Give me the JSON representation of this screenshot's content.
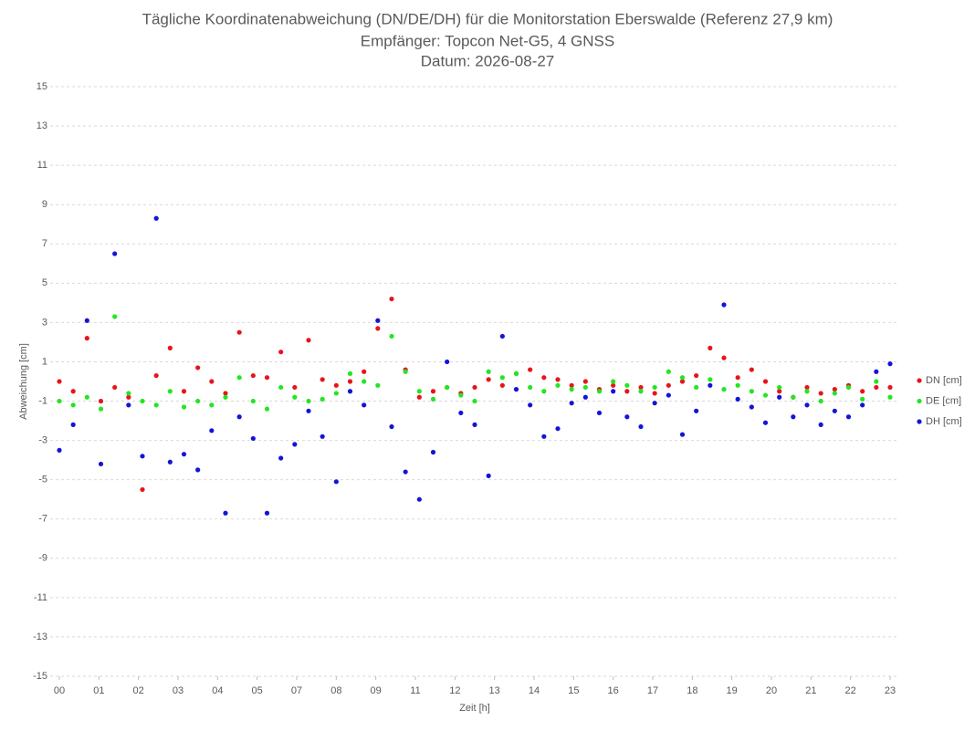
{
  "chart_data": {
    "type": "scatter",
    "title": [
      "Tägliche Koordinatenabweichung (DN/DE/DH) für die Monitorstation Eberswalde (Referenz 27,9 km)",
      "Empfänger: Topcon Net-G5, 4 GNSS",
      "Datum: 2026-08-27"
    ],
    "x_label": "Zeit [h]",
    "y_label": "Abweichung [cm]",
    "xlim": [
      0,
      21
    ],
    "xticks": [
      {
        "value": 0,
        "label": "00"
      },
      {
        "value": 1,
        "label": "01"
      },
      {
        "value": 2,
        "label": "02"
      },
      {
        "value": 3,
        "label": "03"
      },
      {
        "value": 4,
        "label": "04"
      },
      {
        "value": 5,
        "label": "05"
      },
      {
        "value": 6,
        "label": "07"
      },
      {
        "value": 7,
        "label": "08"
      },
      {
        "value": 8,
        "label": "09"
      },
      {
        "value": 9,
        "label": "11"
      },
      {
        "value": 10,
        "label": "12"
      },
      {
        "value": 11,
        "label": "13"
      },
      {
        "value": 12,
        "label": "14"
      },
      {
        "value": 13,
        "label": "15"
      },
      {
        "value": 14,
        "label": "16"
      },
      {
        "value": 15,
        "label": "17"
      },
      {
        "value": 16,
        "label": "18"
      },
      {
        "value": 17,
        "label": "19"
      },
      {
        "value": 18,
        "label": "20"
      },
      {
        "value": 19,
        "label": "21"
      },
      {
        "value": 20,
        "label": "22"
      },
      {
        "value": 21,
        "label": "23"
      }
    ],
    "ylim": [
      -15,
      15
    ],
    "yticks": [
      -15,
      -13,
      -11,
      -9,
      -7,
      -5,
      -3,
      -1,
      1,
      3,
      5,
      7,
      9,
      11,
      13,
      15
    ],
    "grid": true,
    "legend": "right",
    "x": [
      0,
      0.35,
      0.7,
      1.05,
      1.4,
      1.75,
      2.1,
      2.45,
      2.8,
      3.15,
      3.5,
      3.85,
      4.2,
      4.55,
      4.9,
      5.25,
      5.6,
      5.95,
      6.3,
      6.65,
      7,
      7.35,
      7.7,
      8.05,
      8.4,
      8.75,
      9.1,
      9.45,
      9.8,
      10.15,
      10.5,
      10.85,
      11.2,
      11.55,
      11.9,
      12.25,
      12.6,
      12.95,
      13.3,
      13.65,
      14,
      14.35,
      14.7,
      15.05,
      15.4,
      15.75,
      16.1,
      16.45,
      16.8,
      17.15,
      17.5,
      17.85,
      18.2,
      18.55,
      18.9,
      19.25,
      19.6,
      19.95,
      20.3,
      20.65,
      21
    ],
    "series": [
      {
        "name": "DN [cm]",
        "color": "#e8141c",
        "values": [
          0,
          -0.5,
          2.2,
          -1,
          -0.3,
          -0.8,
          -5.5,
          0.3,
          1.7,
          -0.5,
          0.7,
          0,
          -0.6,
          2.5,
          0.3,
          0.2,
          1.5,
          -0.3,
          2.1,
          0.1,
          -0.2,
          0,
          0.5,
          2.7,
          4.2,
          0.6,
          -0.8,
          -0.5,
          -0.3,
          -0.6,
          -0.3,
          0.1,
          -0.2,
          0.4,
          0.6,
          0.2,
          0.1,
          -0.2,
          0,
          -0.4,
          -0.2,
          -0.5,
          -0.3,
          -0.6,
          -0.2,
          0,
          0.3,
          1.7,
          1.2,
          0.2,
          0.6,
          0,
          -0.5,
          -0.8,
          -0.3,
          -0.6,
          -0.4,
          -0.2,
          -0.5,
          -0.3,
          -0.3
        ]
      },
      {
        "name": "DE [cm]",
        "color": "#22e622",
        "values": [
          -1,
          -1.2,
          -0.8,
          -1.4,
          3.3,
          -0.6,
          -1,
          -1.2,
          -0.5,
          -1.3,
          -1,
          -1.2,
          -0.8,
          0.2,
          -1,
          -1.4,
          -0.3,
          -0.8,
          -1,
          -0.9,
          -0.6,
          0.4,
          0,
          -0.2,
          2.3,
          0.5,
          -0.5,
          -0.9,
          -0.3,
          -0.7,
          -1,
          0.5,
          0.2,
          0.4,
          -0.3,
          -0.5,
          -0.2,
          -0.4,
          -0.3,
          -0.5,
          0,
          -0.2,
          -0.5,
          -0.3,
          0.5,
          0.2,
          -0.3,
          0.1,
          -0.4,
          -0.2,
          -0.5,
          -0.7,
          -0.3,
          -0.8,
          -0.5,
          -1,
          -0.6,
          -0.3,
          -0.9,
          0,
          -0.8
        ]
      },
      {
        "name": "DH [cm]",
        "color": "#1414d8",
        "values": [
          -3.5,
          -2.2,
          3.1,
          -4.2,
          6.5,
          -1.2,
          -3.8,
          8.3,
          -4.1,
          -3.7,
          -4.5,
          -2.5,
          -6.7,
          -1.8,
          -2.9,
          -6.7,
          -3.9,
          -3.2,
          -1.5,
          -2.8,
          -5.1,
          -0.5,
          -1.2,
          3.1,
          -2.3,
          -4.6,
          -6,
          -3.6,
          1,
          -1.6,
          -2.2,
          -4.8,
          2.3,
          -0.4,
          -1.2,
          -2.8,
          -2.4,
          -1.1,
          -0.8,
          -1.6,
          -0.5,
          -1.8,
          -2.3,
          -1.1,
          -0.7,
          -2.7,
          -1.5,
          -0.2,
          3.9,
          -0.9,
          -1.3,
          -2.1,
          -0.8,
          -1.8,
          -1.2,
          -2.2,
          -1.5,
          -1.8,
          -1.2,
          0.5,
          0.9
        ]
      }
    ]
  }
}
